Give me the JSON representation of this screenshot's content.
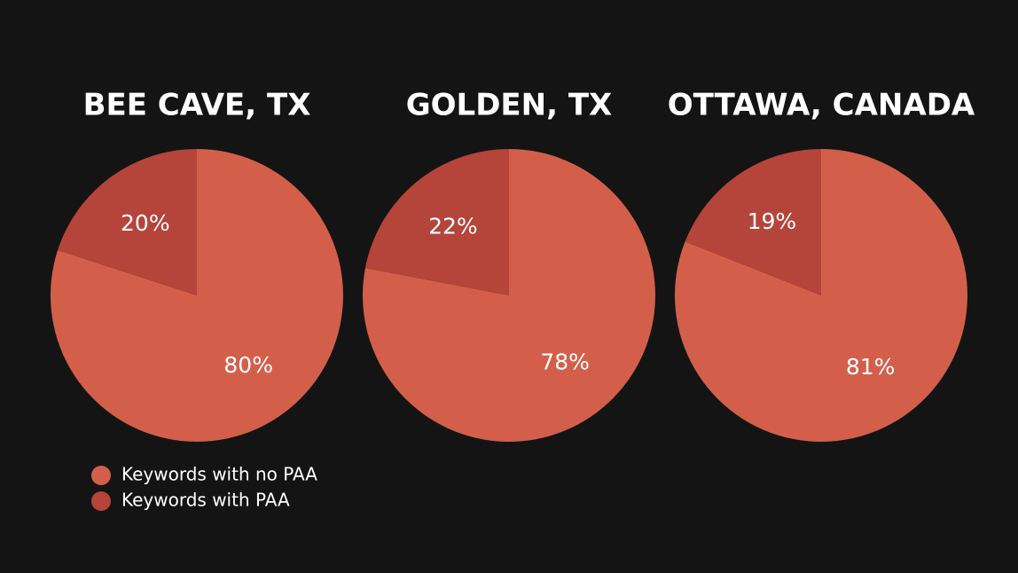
{
  "chart_data": [
    {
      "type": "pie",
      "title": "BEE CAVE, TX",
      "categories": [
        "Keywords with no PAA",
        "Keywords with PAA"
      ],
      "values": [
        80,
        20
      ],
      "value_labels": [
        "80%",
        "20%"
      ],
      "colors": [
        "#d35f4b",
        "#b5443a"
      ]
    },
    {
      "type": "pie",
      "title": "GOLDEN, TX",
      "values": [
        78,
        22
      ],
      "value_labels": [
        "78%",
        "22%"
      ],
      "colors": [
        "#d35f4b",
        "#b5443a"
      ]
    },
    {
      "type": "pie",
      "title": "OTTAWA, CANADA",
      "values": [
        81,
        19
      ],
      "value_labels": [
        "81%",
        "19%"
      ],
      "colors": [
        "#d35f4b",
        "#b5443a"
      ]
    }
  ]
}
